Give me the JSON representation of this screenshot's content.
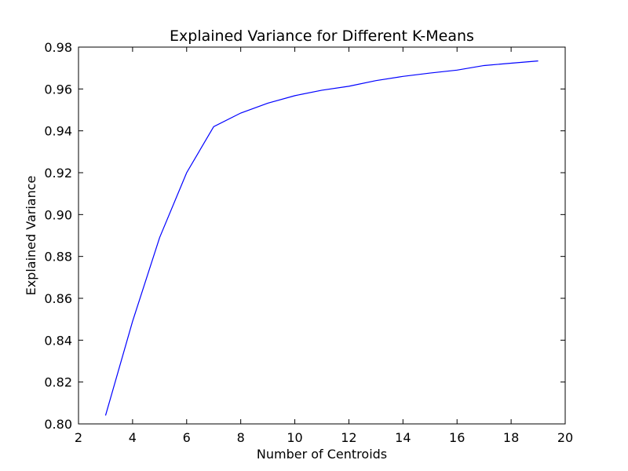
{
  "chart_data": {
    "type": "line",
    "title": "Explained Variance for Different K-Means",
    "xlabel": "Number of Centroids",
    "ylabel": "Explained Variance",
    "xlim": [
      2,
      20
    ],
    "ylim": [
      0.8,
      0.98
    ],
    "x_ticks": [
      "2",
      "4",
      "6",
      "8",
      "10",
      "12",
      "14",
      "16",
      "18",
      "20"
    ],
    "y_ticks": [
      "0.80",
      "0.82",
      "0.84",
      "0.86",
      "0.88",
      "0.90",
      "0.92",
      "0.94",
      "0.96",
      "0.98"
    ],
    "grid": false,
    "legend": "none",
    "series": [
      {
        "color": "#0000ff",
        "x": [
          3,
          4,
          5,
          6,
          7,
          8,
          9,
          10,
          11,
          12,
          13,
          14,
          15,
          16,
          17,
          18,
          19
        ],
        "values": [
          0.804,
          0.849,
          0.889,
          0.92,
          0.942,
          0.9485,
          0.9532,
          0.9568,
          0.9594,
          0.9613,
          0.964,
          0.966,
          0.9676,
          0.969,
          0.9712,
          0.9723,
          0.9734
        ]
      }
    ]
  }
}
